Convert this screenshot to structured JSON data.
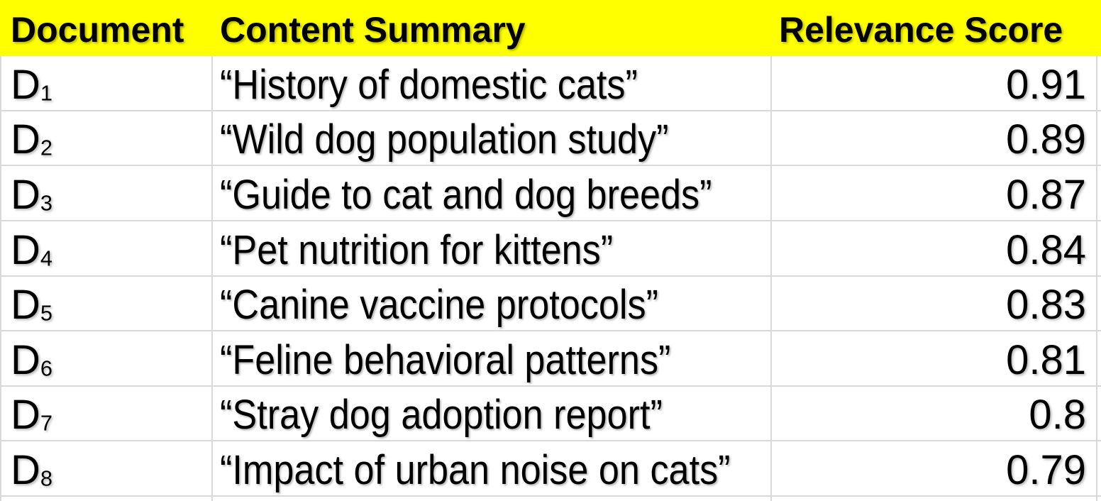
{
  "colors": {
    "header_background": "#FFFF00",
    "gridline": "#D9D9D9",
    "text": "#000000"
  },
  "table": {
    "columns": [
      {
        "key": "document",
        "label": "Document"
      },
      {
        "key": "summary",
        "label": "Content Summary"
      },
      {
        "key": "score",
        "label": "Relevance Score"
      }
    ],
    "rows": [
      {
        "doc": {
          "base": "D",
          "sub": "1"
        },
        "summary": "“History of domestic cats”",
        "score": "0.91"
      },
      {
        "doc": {
          "base": "D",
          "sub": "2"
        },
        "summary": "“Wild dog population study”",
        "score": "0.89"
      },
      {
        "doc": {
          "base": "D",
          "sub": "3"
        },
        "summary": "“Guide to cat and dog breeds”",
        "score": "0.87"
      },
      {
        "doc": {
          "base": "D",
          "sub": "4"
        },
        "summary": "“Pet nutrition for kittens”",
        "score": "0.84"
      },
      {
        "doc": {
          "base": "D",
          "sub": "5"
        },
        "summary": "“Canine vaccine protocols”",
        "score": "0.83"
      },
      {
        "doc": {
          "base": "D",
          "sub": "6"
        },
        "summary": "“Feline behavioral patterns”",
        "score": "0.81"
      },
      {
        "doc": {
          "base": "D",
          "sub": "7"
        },
        "summary": "“Stray dog adoption report”",
        "score": "0.8"
      },
      {
        "doc": {
          "base": "D",
          "sub": "8"
        },
        "summary": "“Impact of urban noise on cats”",
        "score": "0.79"
      }
    ]
  }
}
